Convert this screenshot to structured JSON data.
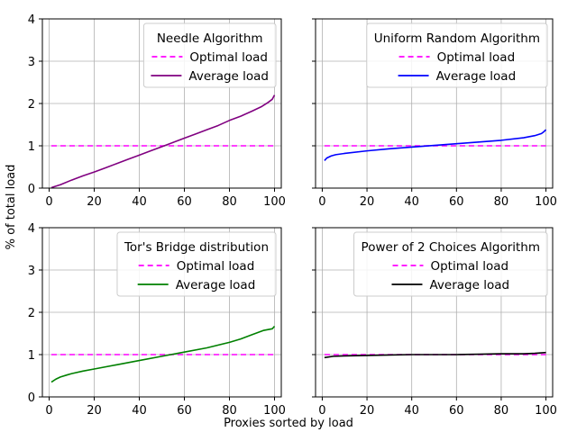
{
  "figure": {
    "ylabel": "% of total load",
    "xlabel": "Proxies sorted by load"
  },
  "chart_data": [
    {
      "type": "line",
      "title": "Needle Algorithm",
      "xlim": [
        0,
        100
      ],
      "ylim": [
        0,
        4
      ],
      "xticks": [
        0,
        20,
        40,
        60,
        80,
        100
      ],
      "yticks": [
        0,
        1,
        2,
        3,
        4
      ],
      "grid": true,
      "legend_position": "top-right",
      "series": [
        {
          "name": "Optimal load",
          "style": "dashed",
          "color": "#ff00ff",
          "x": [
            1,
            100
          ],
          "y": [
            1,
            1
          ]
        },
        {
          "name": "Average load",
          "style": "solid",
          "color": "#800080",
          "x": [
            1,
            2,
            5,
            10,
            15,
            20,
            25,
            30,
            35,
            40,
            45,
            50,
            55,
            60,
            65,
            70,
            75,
            80,
            85,
            90,
            94,
            97,
            99,
            100
          ],
          "y": [
            0.01,
            0.03,
            0.08,
            0.19,
            0.29,
            0.38,
            0.48,
            0.58,
            0.68,
            0.78,
            0.88,
            0.98,
            1.08,
            1.18,
            1.28,
            1.38,
            1.48,
            1.6,
            1.7,
            1.82,
            1.92,
            2.02,
            2.1,
            2.2
          ]
        }
      ]
    },
    {
      "type": "line",
      "title": "Uniform Random Algorithm",
      "xlim": [
        0,
        100
      ],
      "ylim": [
        0,
        4
      ],
      "xticks": [
        0,
        20,
        40,
        60,
        80,
        100
      ],
      "yticks": [
        0,
        1,
        2,
        3,
        4
      ],
      "grid": true,
      "legend_position": "top-right",
      "series": [
        {
          "name": "Optimal load",
          "style": "dashed",
          "color": "#ff00ff",
          "x": [
            1,
            100
          ],
          "y": [
            1,
            1
          ]
        },
        {
          "name": "Average load",
          "style": "solid",
          "color": "#0000ff",
          "x": [
            1,
            2,
            4,
            6,
            10,
            20,
            30,
            40,
            50,
            60,
            70,
            80,
            90,
            95,
            98,
            99,
            100
          ],
          "y": [
            0.65,
            0.71,
            0.76,
            0.79,
            0.82,
            0.88,
            0.93,
            0.97,
            1.01,
            1.05,
            1.09,
            1.13,
            1.19,
            1.24,
            1.29,
            1.33,
            1.38
          ]
        }
      ]
    },
    {
      "type": "line",
      "title": "Tor's Bridge distribution",
      "xlim": [
        0,
        100
      ],
      "ylim": [
        0,
        4
      ],
      "xticks": [
        0,
        20,
        40,
        60,
        80,
        100
      ],
      "yticks": [
        0,
        1,
        2,
        3,
        4
      ],
      "grid": true,
      "legend_position": "top-right",
      "series": [
        {
          "name": "Optimal load",
          "style": "dashed",
          "color": "#ff00ff",
          "x": [
            1,
            100
          ],
          "y": [
            1,
            1
          ]
        },
        {
          "name": "Average load",
          "style": "solid",
          "color": "#008000",
          "x": [
            1,
            3,
            5,
            8,
            10,
            15,
            20,
            30,
            40,
            50,
            60,
            70,
            80,
            85,
            90,
            95,
            99,
            100
          ],
          "y": [
            0.35,
            0.42,
            0.47,
            0.52,
            0.55,
            0.61,
            0.66,
            0.76,
            0.86,
            0.96,
            1.06,
            1.16,
            1.29,
            1.37,
            1.47,
            1.57,
            1.61,
            1.67
          ]
        }
      ]
    },
    {
      "type": "line",
      "title": "Power of 2 Choices Algorithm",
      "xlim": [
        0,
        100
      ],
      "ylim": [
        0,
        4
      ],
      "xticks": [
        0,
        20,
        40,
        60,
        80,
        100
      ],
      "yticks": [
        0,
        1,
        2,
        3,
        4
      ],
      "grid": true,
      "legend_position": "top-right",
      "series": [
        {
          "name": "Optimal load",
          "style": "dashed",
          "color": "#ff00ff",
          "x": [
            1,
            100
          ],
          "y": [
            1,
            1
          ]
        },
        {
          "name": "Average load",
          "style": "solid",
          "color": "#000000",
          "x": [
            1,
            5,
            10,
            20,
            30,
            40,
            50,
            60,
            70,
            80,
            90,
            95,
            100
          ],
          "y": [
            0.93,
            0.96,
            0.97,
            0.98,
            0.99,
            1.0,
            1.0,
            1.0,
            1.01,
            1.02,
            1.02,
            1.03,
            1.05
          ]
        }
      ]
    }
  ]
}
